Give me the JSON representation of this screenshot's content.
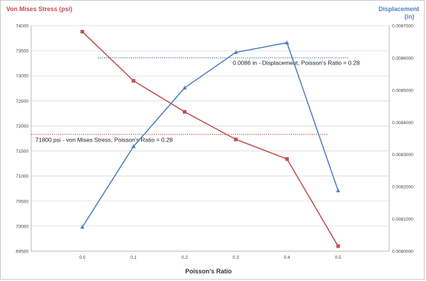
{
  "chart_data": {
    "type": "line",
    "title": "",
    "xlabel": "Poisson's Ratio",
    "ylabel_left": "Von Mises Stress  (psi)",
    "ylabel_right_line1": "Displacement",
    "ylabel_right_line2": "(in)",
    "x": [
      0.0,
      0.1,
      0.2,
      0.3,
      0.4,
      0.5
    ],
    "x_tick_labels": [
      "0.0",
      "0.1",
      "0.2",
      "0.3",
      "0.4",
      "0.5"
    ],
    "ylim_left": [
      69500,
      74000
    ],
    "y_left_ticks": [
      69500,
      70000,
      70500,
      71000,
      71500,
      72000,
      72500,
      73000,
      73500,
      74000
    ],
    "y_left_tick_labels": [
      "69500",
      "70000",
      "70500",
      "71000",
      "71500",
      "72000",
      "72500",
      "73000",
      "73500",
      "74000"
    ],
    "ylim_right": [
      0.008,
      0.0087
    ],
    "y_right_ticks": [
      0.008,
      0.0081,
      0.0082,
      0.0083,
      0.0084,
      0.0085,
      0.0086,
      0.0087
    ],
    "y_right_tick_labels": [
      "0.0080000",
      "0.0081000",
      "0.0082000",
      "0.0083000",
      "0.0084000",
      "0.0085000",
      "0.0086000",
      "0.0087000"
    ],
    "grid": "horizontal",
    "series": [
      {
        "axis": "left",
        "color": "#c0504d",
        "marker": "square",
        "values": [
          73880,
          72900,
          72280,
          71730,
          71340,
          69600
        ]
      },
      {
        "axis": "right",
        "color": "#4f81bd",
        "marker": "triangle",
        "values": [
          0.008075,
          0.008325,
          0.008507,
          0.008617,
          0.008647,
          0.008188
        ]
      }
    ],
    "reference_lines": [
      {
        "axis": "right",
        "value": 0.0086,
        "color": "#4f81bd",
        "x_from": 0.03,
        "x_to": 0.52,
        "label": "0.0086 in - Displacement, Poisson's Ratio = 0.28"
      },
      {
        "axis": "left",
        "value": 71830,
        "color": "#c0504d",
        "x_from": -0.1,
        "x_to": 0.48,
        "label": "71800 psi - von Mises Stress, Poisson's Ratio = 0.28"
      }
    ],
    "colors": {
      "left_axis_title": "#c0504d",
      "right_axis_title": "#4f81bd",
      "gridline": "#d9d9d9",
      "axis_title": "#333333"
    }
  }
}
